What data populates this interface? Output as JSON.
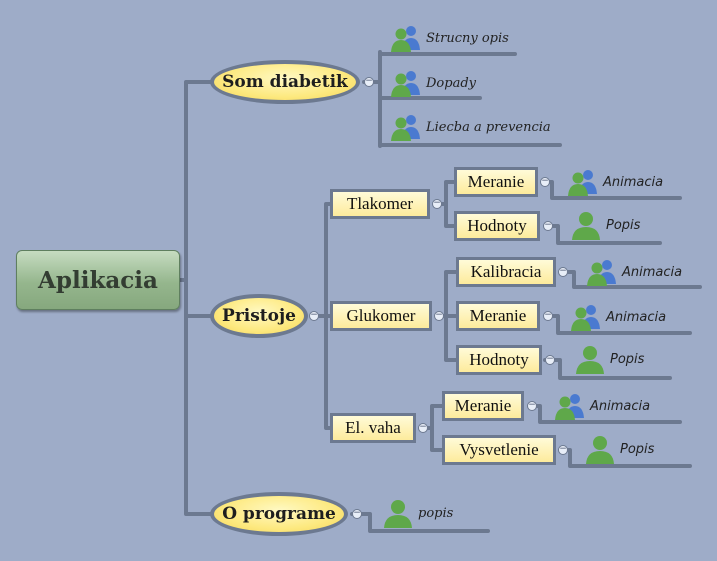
{
  "root": {
    "label": "Aplikacia"
  },
  "branches": {
    "som_diabetik": {
      "label": "Som diabetik",
      "leaves": [
        "Strucny opis",
        "Dopady",
        "Liecba a prevencia"
      ]
    },
    "pristoje": {
      "label": "Pristoje",
      "tlakomer": {
        "label": "Tlakomer",
        "meranie": {
          "label": "Meranie",
          "leaf": "Animacia"
        },
        "hodnoty": {
          "label": "Hodnoty",
          "leaf": "Popis"
        }
      },
      "glukomer": {
        "label": "Glukomer",
        "kalibracia": {
          "label": "Kalibracia",
          "leaf": "Animacia"
        },
        "meranie": {
          "label": "Meranie",
          "leaf": "Animacia"
        },
        "hodnoty": {
          "label": "Hodnoty",
          "leaf": "Popis"
        }
      },
      "el_vaha": {
        "label": "El. vaha",
        "meranie": {
          "label": "Meranie",
          "leaf": "Animacia"
        },
        "vysvetlenie": {
          "label": "Vysvetlenie",
          "leaf": "Popis"
        }
      }
    },
    "o_programe": {
      "label": "O programe",
      "leaf": "popis"
    }
  },
  "collapse_symbol": "−",
  "colors": {
    "background": "#9eacc8",
    "connector": "#6c7990",
    "oval_fill": "#fde97f",
    "box_fill": "#fdeb9c",
    "root_fill": "#95b68d",
    "user_icon_green": "#5fa84a",
    "user_icon_blue": "#4a7ad0"
  },
  "icons": {
    "group": "users-group-icon",
    "single": "user-icon"
  }
}
